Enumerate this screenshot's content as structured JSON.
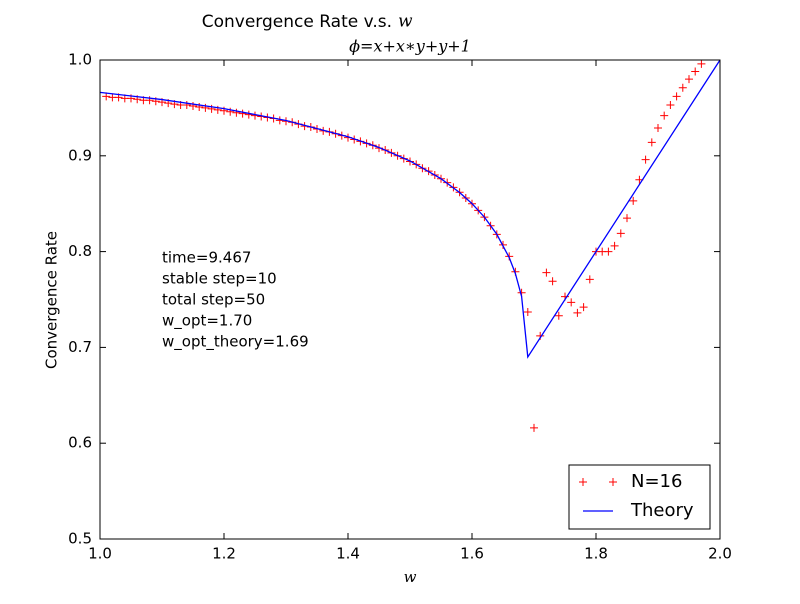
{
  "chart_data": {
    "type": "line",
    "title": "Convergence Rate v.s.",
    "title_math": "w",
    "subtitle": "ϕ=x+x∗y+y+1",
    "xlabel": "w",
    "ylabel": "Convergence Rate",
    "xlim": [
      1.0,
      2.0
    ],
    "ylim": [
      0.5,
      1.0
    ],
    "xticks": [
      {
        "value": 1.0,
        "label": "1.0"
      },
      1.2,
      1.4,
      1.6,
      1.8,
      {
        "value": 2.0,
        "label": "2.0"
      }
    ],
    "yticks": [
      0.5,
      0.6,
      0.7,
      0.8,
      0.9,
      {
        "value": 1.0,
        "label": "1.0"
      }
    ],
    "grid": false,
    "legend": "lower right",
    "annotations": [
      "time=9.467",
      "stable step=10",
      "total step=50",
      "w_opt=1.70",
      "w_opt_theory=1.69"
    ],
    "series": [
      {
        "name": "N=16",
        "color": "#ff0000",
        "style": "markers",
        "x": [
          1.01,
          1.02,
          1.03,
          1.04,
          1.05,
          1.06,
          1.07,
          1.08,
          1.09,
          1.1,
          1.11,
          1.12,
          1.13,
          1.14,
          1.15,
          1.16,
          1.17,
          1.18,
          1.19,
          1.2,
          1.21,
          1.22,
          1.23,
          1.24,
          1.25,
          1.26,
          1.27,
          1.28,
          1.29,
          1.3,
          1.31,
          1.32,
          1.33,
          1.34,
          1.35,
          1.36,
          1.37,
          1.38,
          1.39,
          1.4,
          1.41,
          1.42,
          1.43,
          1.44,
          1.45,
          1.46,
          1.47,
          1.48,
          1.49,
          1.5,
          1.51,
          1.52,
          1.53,
          1.54,
          1.55,
          1.56,
          1.57,
          1.58,
          1.59,
          1.6,
          1.61,
          1.62,
          1.63,
          1.64,
          1.65,
          1.66,
          1.67,
          1.68,
          1.69,
          1.7,
          1.71,
          1.72,
          1.73,
          1.74,
          1.75,
          1.76,
          1.77,
          1.78,
          1.79,
          1.8,
          1.81,
          1.82,
          1.83,
          1.84,
          1.85,
          1.86,
          1.87,
          1.88,
          1.89,
          1.9,
          1.91,
          1.92,
          1.93,
          1.94,
          1.95,
          1.96,
          1.97
        ],
        "values": [
          0.962,
          0.961,
          0.961,
          0.96,
          0.96,
          0.959,
          0.958,
          0.958,
          0.957,
          0.956,
          0.955,
          0.954,
          0.953,
          0.953,
          0.952,
          0.951,
          0.95,
          0.949,
          0.948,
          0.947,
          0.946,
          0.945,
          0.944,
          0.943,
          0.942,
          0.941,
          0.94,
          0.939,
          0.937,
          0.936,
          0.935,
          0.933,
          0.931,
          0.93,
          0.928,
          0.926,
          0.925,
          0.923,
          0.921,
          0.919,
          0.917,
          0.915,
          0.913,
          0.911,
          0.908,
          0.906,
          0.903,
          0.9,
          0.897,
          0.894,
          0.891,
          0.887,
          0.884,
          0.88,
          0.876,
          0.872,
          0.867,
          0.862,
          0.856,
          0.85,
          0.843,
          0.836,
          0.827,
          0.818,
          0.807,
          0.795,
          0.779,
          0.757,
          0.737,
          0.616,
          0.712,
          0.778,
          0.769,
          0.733,
          0.753,
          0.747,
          0.736,
          0.742,
          0.771,
          0.8,
          0.8,
          0.8,
          0.806,
          0.819,
          0.835,
          0.853,
          0.875,
          0.896,
          0.914,
          0.929,
          0.942,
          0.953,
          0.962,
          0.971,
          0.98,
          0.988,
          0.996
        ]
      },
      {
        "name": "Theory",
        "color": "#0000ff",
        "style": "line",
        "x": [
          1.0,
          1.1,
          1.2,
          1.3,
          1.4,
          1.45,
          1.5,
          1.55,
          1.58,
          1.6,
          1.62,
          1.64,
          1.66,
          1.67,
          1.68,
          1.69,
          2.0
        ],
        "values": [
          0.9662,
          0.9587,
          0.9492,
          0.9369,
          0.9199,
          0.9087,
          0.8946,
          0.8761,
          0.8617,
          0.8501,
          0.836,
          0.8181,
          0.7938,
          0.777,
          0.7532,
          0.69,
          1.0
        ]
      }
    ]
  }
}
